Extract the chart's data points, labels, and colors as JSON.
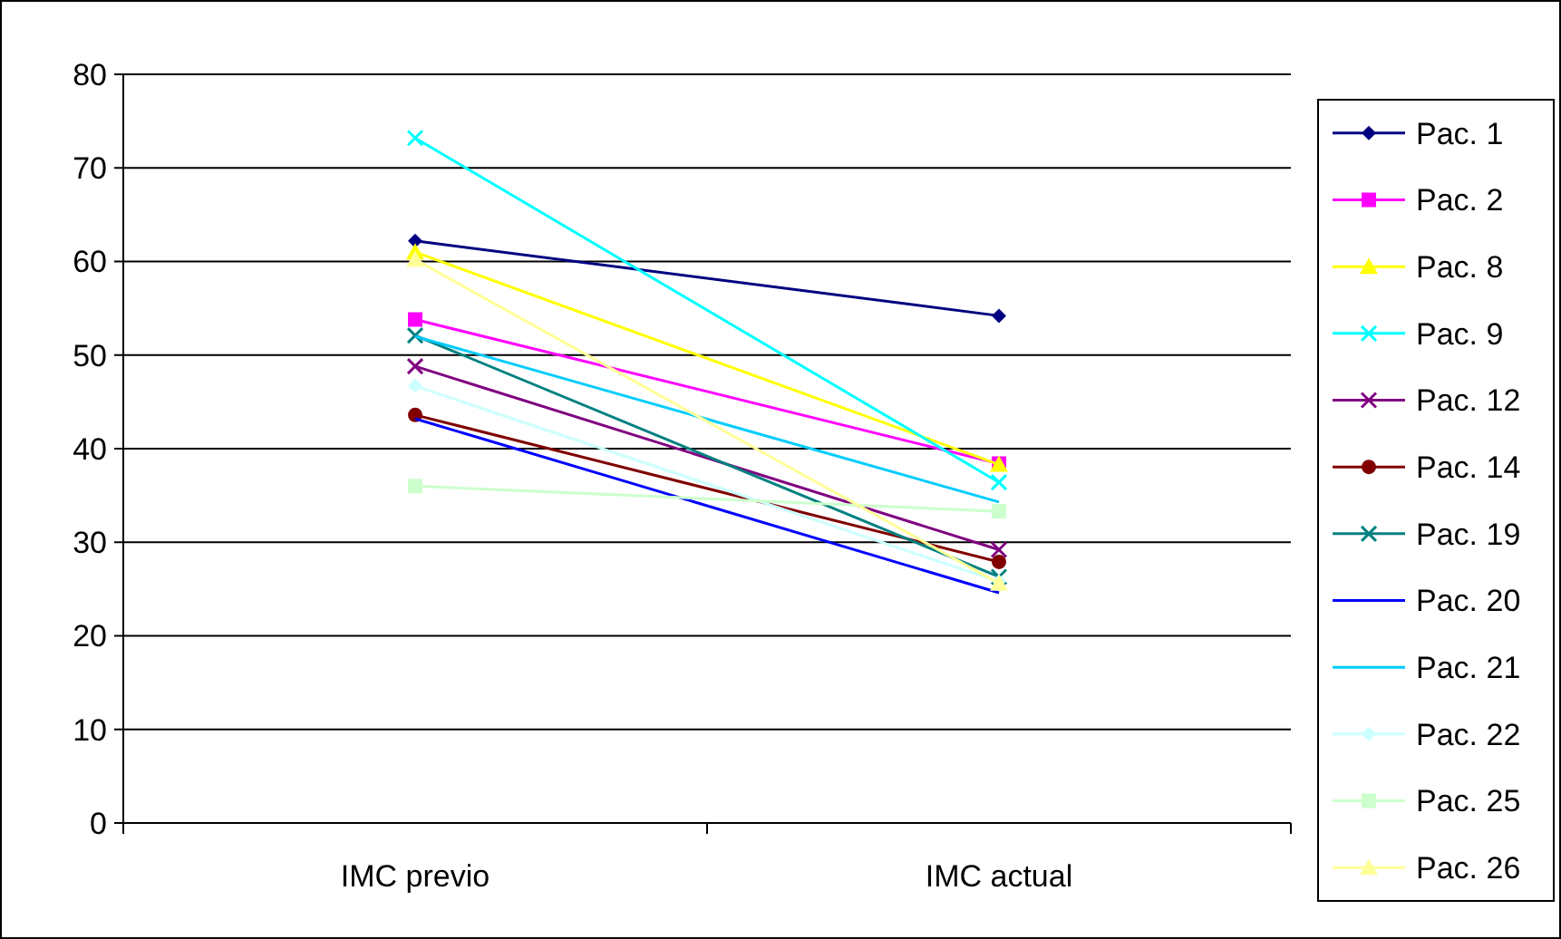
{
  "chart_data": {
    "type": "line",
    "categories": [
      "IMC previo",
      "IMC actual"
    ],
    "ylim": [
      0,
      80
    ],
    "yticks": [
      0,
      10,
      20,
      30,
      40,
      50,
      60,
      70,
      80
    ],
    "grid": "y",
    "legend": "right",
    "series": [
      {
        "name": "Pac. 1",
        "color": "#000080",
        "marker": "diamond",
        "values": [
          62.2,
          54.2
        ]
      },
      {
        "name": "Pac. 2",
        "color": "#ff00ff",
        "marker": "square",
        "values": [
          53.8,
          38.4
        ]
      },
      {
        "name": "Pac. 8",
        "color": "#ffff00",
        "marker": "triangle",
        "values": [
          61,
          38.3
        ]
      },
      {
        "name": "Pac. 9",
        "color": "#00ffff",
        "marker": "cross",
        "values": [
          73.2,
          36.4
        ]
      },
      {
        "name": "Pac. 12",
        "color": "#800080",
        "marker": "cross",
        "values": [
          48.8,
          29.2
        ]
      },
      {
        "name": "Pac. 14",
        "color": "#800000",
        "marker": "circle",
        "values": [
          43.6,
          27.9
        ]
      },
      {
        "name": "Pac. 19",
        "color": "#008080",
        "marker": "cross",
        "values": [
          52.1,
          26.3
        ]
      },
      {
        "name": "Pac. 20",
        "color": "#0000ff",
        "marker": "none",
        "values": [
          43.2,
          24.6
        ]
      },
      {
        "name": "Pac. 21",
        "color": "#00ccff",
        "marker": "none",
        "values": [
          52,
          34.3
        ]
      },
      {
        "name": "Pac. 22",
        "color": "#ccffff",
        "marker": "diamond",
        "values": [
          46.7,
          25.8
        ]
      },
      {
        "name": "Pac. 25",
        "color": "#ccffcc",
        "marker": "square",
        "values": [
          36,
          33.3
        ]
      },
      {
        "name": "Pac. 26",
        "color": "#ffff99",
        "marker": "triangle",
        "values": [
          60.2,
          25.6
        ]
      }
    ]
  }
}
